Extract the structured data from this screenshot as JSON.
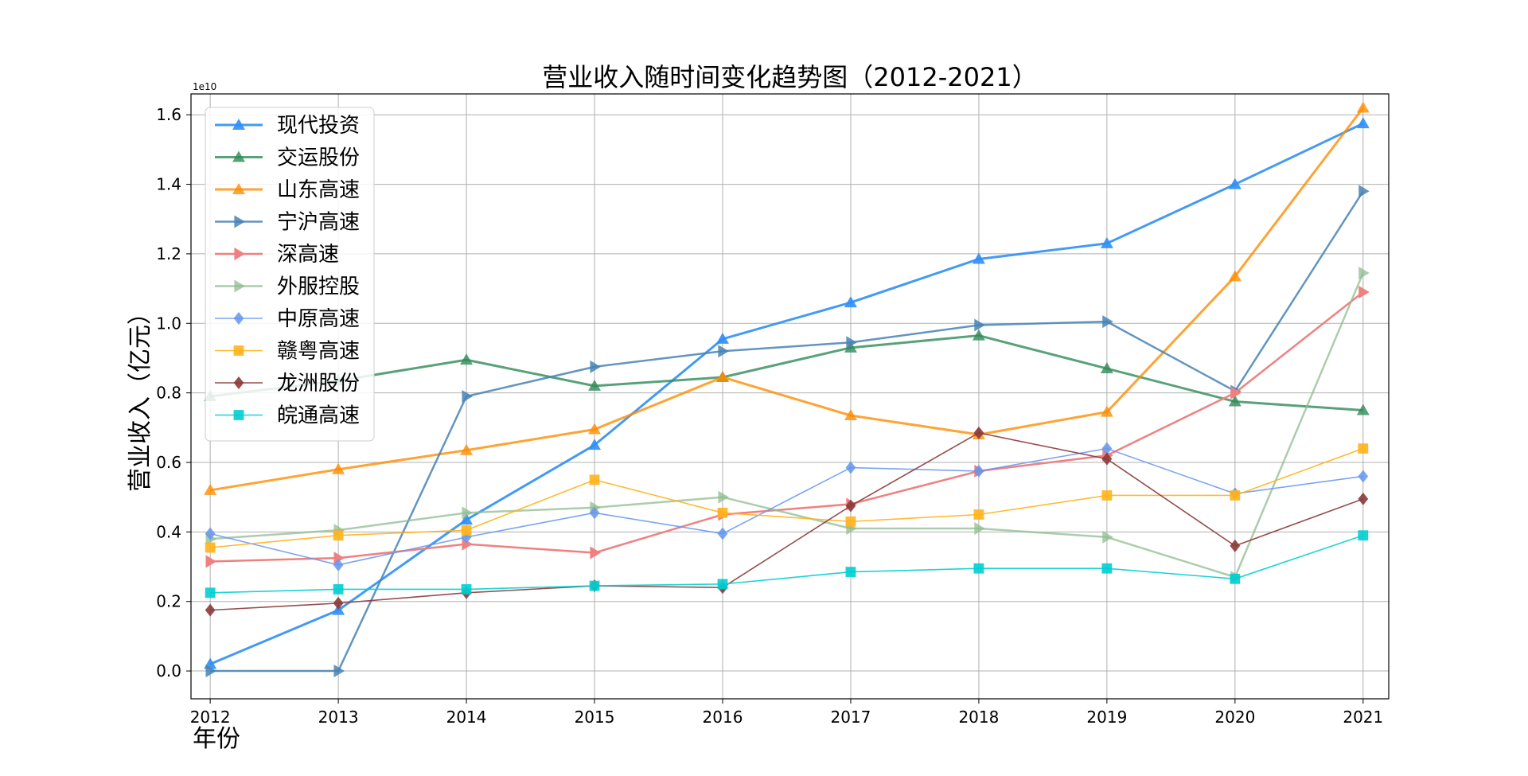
{
  "chart_data": {
    "type": "line",
    "title": "营业收入随时间变化趋势图（2012-2021）",
    "xlabel": "年份",
    "ylabel": "营业收入（亿元）",
    "y_offset_label": "1e10",
    "x": [
      2012,
      2013,
      2014,
      2015,
      2016,
      2017,
      2018,
      2019,
      2020,
      2021
    ],
    "x_tick_labels": [
      "2012",
      "2013",
      "2014",
      "2015",
      "2016",
      "2017",
      "2018",
      "2019",
      "2020",
      "2021"
    ],
    "y_ticks": [
      0.0,
      0.2,
      0.4,
      0.6,
      0.8,
      1.0,
      1.2,
      1.4,
      1.6
    ],
    "y_tick_labels": [
      "0.0",
      "0.2",
      "0.4",
      "0.6",
      "0.8",
      "1.0",
      "1.2",
      "1.4",
      "1.6"
    ],
    "ylim": [
      -0.08,
      1.66
    ],
    "xlim": [
      2011.85,
      2021.2
    ],
    "grid": true,
    "legend_position": "top-left",
    "series": [
      {
        "name": "现代投资",
        "color": "#2f8ff5",
        "marker": "triangle-up",
        "width": 3,
        "opacity": 0.9,
        "values": [
          0.02,
          0.175,
          0.435,
          0.65,
          0.955,
          1.06,
          1.185,
          1.23,
          1.4,
          1.575
        ]
      },
      {
        "name": "交运股份",
        "color": "#2e8b57",
        "marker": "triangle-up",
        "width": 3,
        "opacity": 0.8,
        "values": [
          0.79,
          0.835,
          0.895,
          0.82,
          0.845,
          0.93,
          0.965,
          0.87,
          0.775,
          0.75
        ]
      },
      {
        "name": "山东高速",
        "color": "#ff8c00",
        "marker": "triangle-up",
        "width": 3,
        "opacity": 0.8,
        "values": [
          0.52,
          0.58,
          0.635,
          0.695,
          0.845,
          0.735,
          0.68,
          0.745,
          1.135,
          1.62
        ]
      },
      {
        "name": "宁沪高速",
        "color": "#4682b4",
        "marker": "triangle-right",
        "width": 2.5,
        "opacity": 0.85,
        "values": [
          0.0,
          0.0,
          0.79,
          0.875,
          0.92,
          0.945,
          0.995,
          1.005,
          0.805,
          1.38
        ]
      },
      {
        "name": "深高速",
        "color": "#f08080",
        "marker": "triangle-right",
        "width": 2.5,
        "opacity": 1,
        "values": [
          0.315,
          0.325,
          0.365,
          0.34,
          0.45,
          0.48,
          0.575,
          0.62,
          0.8,
          1.09
        ]
      },
      {
        "name": "外服控股",
        "color": "#8fbc8f",
        "marker": "triangle-right",
        "width": 2.5,
        "opacity": 0.75,
        "values": [
          0.38,
          0.405,
          0.455,
          0.47,
          0.5,
          0.41,
          0.41,
          0.385,
          0.27,
          1.145
        ]
      },
      {
        "name": "中原高速",
        "color": "#6495ed",
        "marker": "diamond",
        "width": 1.6,
        "opacity": 0.85,
        "values": [
          0.395,
          0.305,
          0.385,
          0.455,
          0.395,
          0.585,
          0.575,
          0.64,
          0.51,
          0.56
        ]
      },
      {
        "name": "赣粤高速",
        "color": "#ffb31a",
        "marker": "square",
        "width": 1.6,
        "opacity": 0.9,
        "values": [
          0.355,
          0.39,
          0.405,
          0.55,
          0.455,
          0.43,
          0.45,
          0.505,
          0.505,
          0.64
        ]
      },
      {
        "name": "龙洲股份",
        "color": "#8b3a3a",
        "marker": "diamond",
        "width": 1.6,
        "opacity": 0.9,
        "values": [
          0.175,
          0.195,
          0.225,
          0.245,
          0.24,
          0.475,
          0.685,
          0.61,
          0.36,
          0.495
        ]
      },
      {
        "name": "皖通高速",
        "color": "#00ced1",
        "marker": "square",
        "width": 1.6,
        "opacity": 0.9,
        "values": [
          0.225,
          0.235,
          0.235,
          0.245,
          0.25,
          0.285,
          0.295,
          0.295,
          0.265,
          0.39
        ]
      }
    ]
  }
}
